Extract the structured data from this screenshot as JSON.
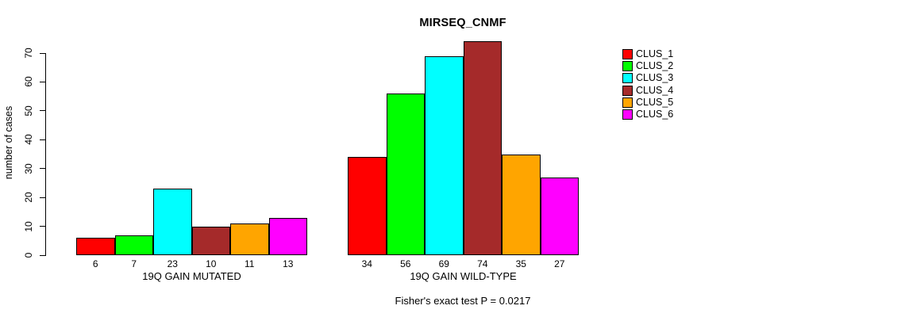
{
  "chart_data": {
    "type": "bar",
    "title": "MIRSEQ_CNMF",
    "ylabel": "number of cases",
    "xlabel": "",
    "ylim": [
      0,
      70
    ],
    "yticks": [
      0,
      10,
      20,
      30,
      40,
      50,
      60,
      70
    ],
    "grid": false,
    "legend_position": "right",
    "bar_value_labels": true,
    "groups": [
      {
        "label": "19Q GAIN MUTATED",
        "values": [
          6,
          7,
          23,
          10,
          11,
          13
        ]
      },
      {
        "label": "19Q GAIN WILD-TYPE",
        "values": [
          34,
          56,
          69,
          74,
          35,
          27
        ]
      }
    ],
    "series": [
      {
        "name": "CLUS_1",
        "color": "#ff0000"
      },
      {
        "name": "CLUS_2",
        "color": "#00ff00"
      },
      {
        "name": "CLUS_3",
        "color": "#00ffff"
      },
      {
        "name": "CLUS_4",
        "color": "#a52a2a"
      },
      {
        "name": "CLUS_5",
        "color": "#ffa500"
      },
      {
        "name": "CLUS_6",
        "color": "#ff00ff"
      }
    ],
    "annotation": "Fisher's exact test P = 0.0217"
  }
}
